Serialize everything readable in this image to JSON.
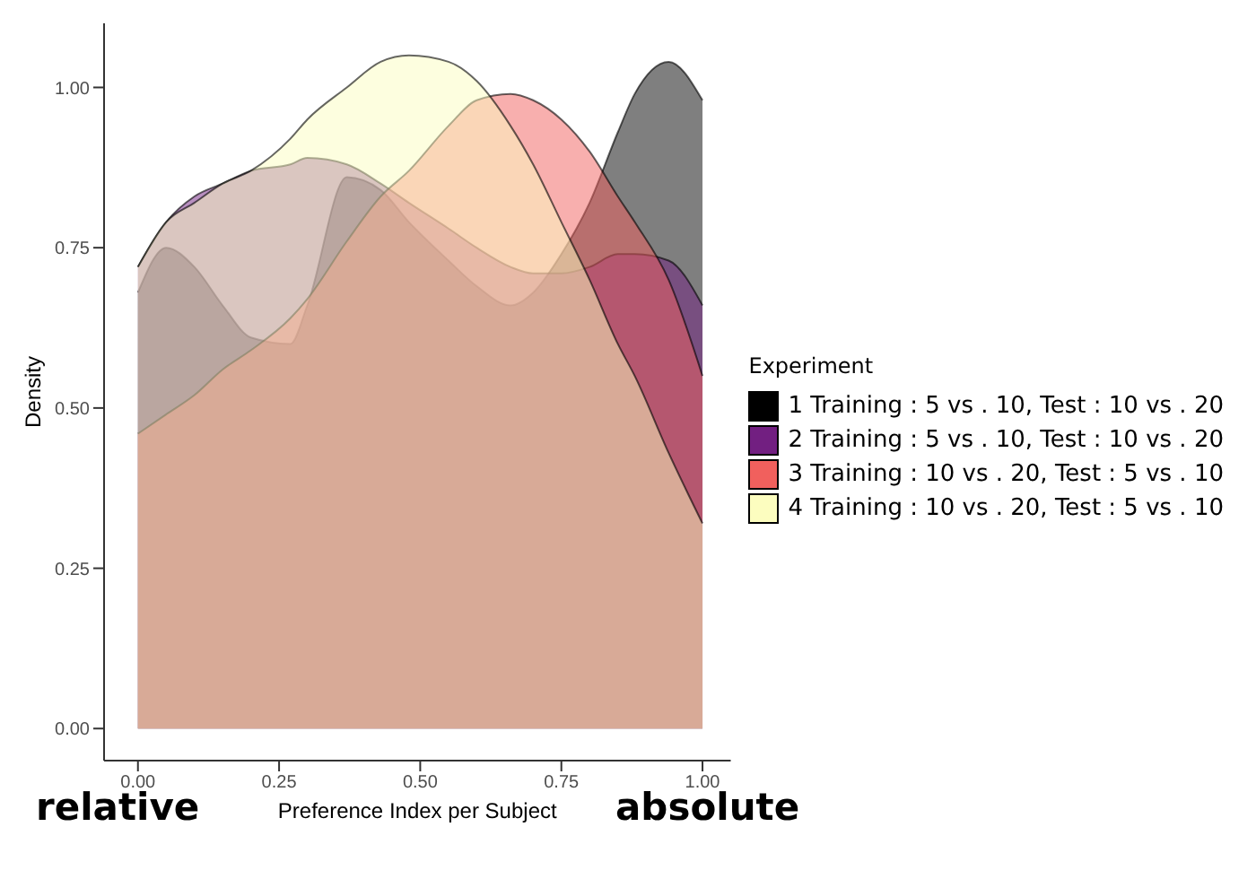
{
  "chart_data": {
    "type": "area",
    "xlabel": "Preference Index per Subject",
    "ylabel": "Density",
    "legend_title": "Experiment",
    "legend": "right",
    "x": [
      0,
      0.05,
      0.1,
      0.15,
      0.2,
      0.27,
      0.3,
      0.37,
      0.43,
      0.48,
      0.55,
      0.6,
      0.66,
      0.7,
      0.75,
      0.8,
      0.85,
      0.88,
      0.94,
      1
    ],
    "xlim": [
      -0.06,
      1.05
    ],
    "xticks": [
      {
        "value": 0,
        "label": "0.00"
      },
      {
        "value": 0.25,
        "label": "0.25"
      },
      {
        "value": 0.5,
        "label": "0.50"
      },
      {
        "value": 0.75,
        "label": "0.75"
      },
      {
        "value": 1,
        "label": "1.00"
      }
    ],
    "ylim": [
      -0.05,
      1.1
    ],
    "yticks": [
      {
        "value": 0,
        "label": "0.00"
      },
      {
        "value": 0.25,
        "label": "0.25"
      },
      {
        "value": 0.5,
        "label": "0.50"
      },
      {
        "value": 0.75,
        "label": "0.75"
      },
      {
        "value": 1,
        "label": "1.00"
      }
    ],
    "series": [
      {
        "name": "1 Training : 5 vs . 10, Test : 10 vs . 20",
        "color": "#000000",
        "values": [
          0.68,
          0.75,
          0.72,
          0.66,
          0.61,
          0.6,
          0.66,
          0.86,
          0.84,
          0.79,
          0.73,
          0.69,
          0.66,
          0.68,
          0.74,
          0.82,
          0.93,
          0.99,
          1.04,
          0.98
        ]
      },
      {
        "name": "2 Training : 5 vs . 10, Test : 10 vs . 20",
        "color": "#721f81",
        "values": [
          0.72,
          0.79,
          0.83,
          0.85,
          0.87,
          0.88,
          0.89,
          0.88,
          0.85,
          0.82,
          0.78,
          0.75,
          0.72,
          0.71,
          0.71,
          0.72,
          0.74,
          0.74,
          0.73,
          0.66
        ]
      },
      {
        "name": "3 Training : 10 vs . 20, Test : 5 vs . 10",
        "color": "#f1605d",
        "values": [
          0.46,
          0.49,
          0.52,
          0.56,
          0.59,
          0.64,
          0.67,
          0.76,
          0.83,
          0.87,
          0.94,
          0.98,
          0.99,
          0.98,
          0.95,
          0.9,
          0.83,
          0.79,
          0.7,
          0.55
        ]
      },
      {
        "name": "4 Training : 10 vs . 20, Test : 5 vs . 10",
        "color": "#fcfdbf",
        "values": [
          0.72,
          0.79,
          0.82,
          0.85,
          0.87,
          0.92,
          0.95,
          1.0,
          1.04,
          1.05,
          1.04,
          1.01,
          0.94,
          0.88,
          0.79,
          0.7,
          0.6,
          0.55,
          0.43,
          0.32
        ]
      }
    ],
    "annotations": [
      "relative",
      "absolute"
    ]
  }
}
